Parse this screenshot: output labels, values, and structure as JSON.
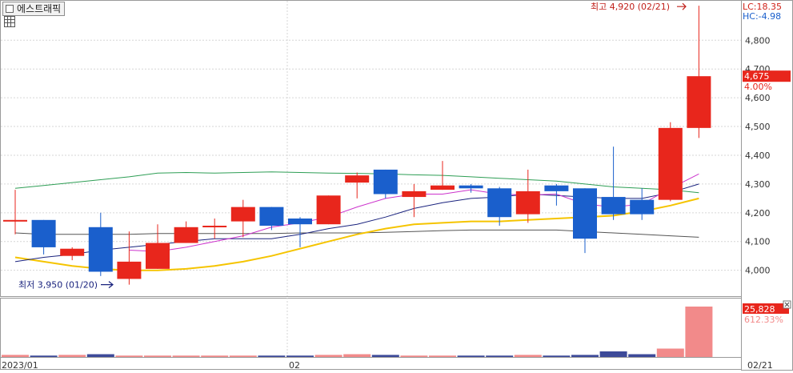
{
  "title": "에스트래픽",
  "indicators": {
    "lc": "LC:18.35",
    "hc": "HC:-4.98"
  },
  "price_tag": {
    "value": "4,675",
    "pct": "4.00%"
  },
  "volume_tag": {
    "value": "25,828",
    "pct": "612.33%"
  },
  "annotations": {
    "high": "최고 4,920 (02/21)",
    "low": "최저 3,950 (01/20)"
  },
  "x_labels": [
    "2023/01",
    "02",
    "02/21"
  ],
  "colors": {
    "up": "#e8261c",
    "down": "#1a5fcc",
    "ma5": "#cc33cc",
    "ma10": "#1a237e",
    "ma20": "#f5c400",
    "ma60": "#2e9e55",
    "ma120": "#555555",
    "vol_up": "#f28a8a",
    "vol_down": "#3d4a99"
  },
  "chart_data": {
    "type": "candlestick",
    "y_ticks": [
      "4,000",
      "4,100",
      "4,200",
      "4,300",
      "4,400",
      "4,500",
      "4,600",
      "4,700",
      "4,800"
    ],
    "ylim": [
      3910,
      4940
    ],
    "candles": [
      {
        "o": 4175,
        "h": 4280,
        "l": 4125,
        "c": 4175
      },
      {
        "o": 4175,
        "h": 4175,
        "l": 4055,
        "c": 4080
      },
      {
        "o": 4050,
        "h": 4080,
        "l": 4035,
        "c": 4075
      },
      {
        "o": 4150,
        "h": 4200,
        "l": 3980,
        "c": 3995
      },
      {
        "o": 3970,
        "h": 4135,
        "l": 3950,
        "c": 4030
      },
      {
        "o": 4005,
        "h": 4160,
        "l": 4005,
        "c": 4095
      },
      {
        "o": 4095,
        "h": 4170,
        "l": 4095,
        "c": 4150
      },
      {
        "o": 4150,
        "h": 4180,
        "l": 4110,
        "c": 4155
      },
      {
        "o": 4170,
        "h": 4245,
        "l": 4115,
        "c": 4220
      },
      {
        "o": 4220,
        "h": 4220,
        "l": 4140,
        "c": 4155
      },
      {
        "o": 4180,
        "h": 4185,
        "l": 4080,
        "c": 4160
      },
      {
        "o": 4160,
        "h": 4260,
        "l": 4160,
        "c": 4260
      },
      {
        "o": 4305,
        "h": 4340,
        "l": 4250,
        "c": 4330
      },
      {
        "o": 4350,
        "h": 4350,
        "l": 4250,
        "c": 4265
      },
      {
        "o": 4255,
        "h": 4300,
        "l": 4185,
        "c": 4275
      },
      {
        "o": 4280,
        "h": 4380,
        "l": 4280,
        "c": 4295
      },
      {
        "o": 4295,
        "h": 4300,
        "l": 4270,
        "c": 4285
      },
      {
        "o": 4285,
        "h": 4290,
        "l": 4155,
        "c": 4185
      },
      {
        "o": 4195,
        "h": 4350,
        "l": 4165,
        "c": 4275
      },
      {
        "o": 4295,
        "h": 4300,
        "l": 4225,
        "c": 4275
      },
      {
        "o": 4285,
        "h": 4285,
        "l": 4060,
        "c": 4110
      },
      {
        "o": 4255,
        "h": 4430,
        "l": 4175,
        "c": 4195
      },
      {
        "o": 4245,
        "h": 4285,
        "l": 4175,
        "c": 4195
      },
      {
        "o": 4245,
        "h": 4515,
        "l": 4240,
        "c": 4495
      },
      {
        "o": 4495,
        "h": 4920,
        "l": 4460,
        "c": 4675
      }
    ],
    "volume": [
      3,
      2,
      3,
      4,
      2,
      2,
      2,
      2,
      2,
      2,
      2,
      3,
      4,
      3,
      2,
      2,
      2,
      2,
      3,
      2,
      3,
      8,
      4,
      12,
      72
    ],
    "ma5": [
      null,
      null,
      null,
      null,
      4070,
      4065,
      4080,
      4100,
      4120,
      4150,
      4165,
      4185,
      4220,
      4250,
      4265,
      4265,
      4280,
      4265,
      4262,
      4265,
      4230,
      4220,
      4230,
      4285,
      4335
    ],
    "ma10": [
      4030,
      4045,
      4055,
      4070,
      4080,
      4090,
      4100,
      4110,
      4110,
      4110,
      4125,
      4145,
      4160,
      4185,
      4215,
      4235,
      4250,
      4255,
      4265,
      4260,
      4255,
      4250,
      4250,
      4270,
      4300
    ],
    "ma20": [
      4045,
      4030,
      4015,
      4005,
      4000,
      4000,
      4005,
      4015,
      4030,
      4050,
      4075,
      4100,
      4125,
      4145,
      4160,
      4165,
      4170,
      4170,
      4175,
      4180,
      4185,
      4190,
      4205,
      4225,
      4250
    ],
    "ma60": [
      4285,
      4295,
      4305,
      4315,
      4325,
      4338,
      4340,
      4338,
      4340,
      4342,
      4340,
      4338,
      4337,
      4335,
      4332,
      4330,
      4325,
      4320,
      4315,
      4310,
      4300,
      4290,
      4285,
      4280,
      4270
    ],
    "ma120": [
      4130,
      4125,
      4125,
      4125,
      4125,
      4128,
      4128,
      4128,
      4128,
      4128,
      4130,
      4130,
      4130,
      4132,
      4135,
      4138,
      4140,
      4140,
      4140,
      4140,
      4135,
      4130,
      4125,
      4120,
      4115
    ],
    "ylabel": "",
    "xlabel": ""
  }
}
